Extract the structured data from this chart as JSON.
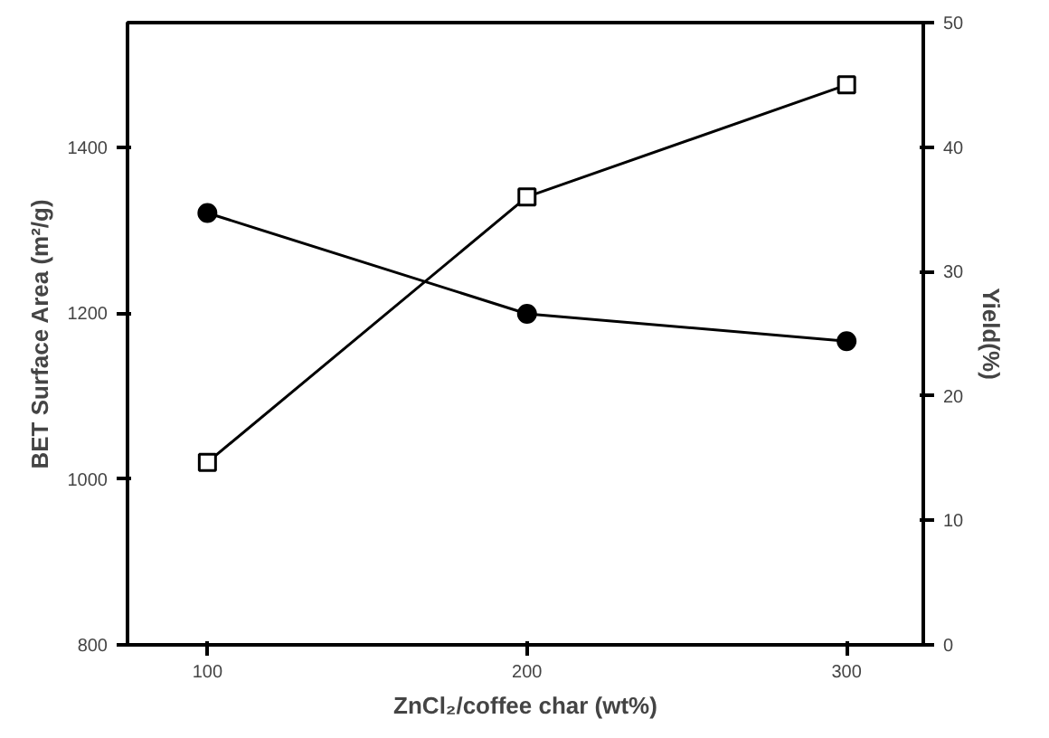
{
  "chart_data": {
    "type": "line",
    "xlabel": "ZnCl₂/coffee char (wt%)",
    "ylabel": "BET Surface Area (m²/g)",
    "y2label": "Yield(%)",
    "x": [
      100,
      200,
      300
    ],
    "series": [
      {
        "color": "#000000",
        "values": [
          1020,
          1340,
          1475
        ],
        "marker": "square"
      },
      {
        "color": "#000000",
        "values": [
          34.7,
          26.6,
          24.4
        ],
        "marker": "circle",
        "axis": "y2"
      }
    ],
    "xlim": [
      75,
      324
    ],
    "xticks": [
      100,
      200,
      300
    ],
    "ylim": [
      800,
      1550
    ],
    "yticks": [
      800,
      1000,
      1200,
      1400
    ],
    "y2lim": [
      0,
      50
    ],
    "y2ticks": [
      0,
      10,
      20,
      30,
      40,
      50
    ],
    "grid": false,
    "line_style": "solid"
  }
}
